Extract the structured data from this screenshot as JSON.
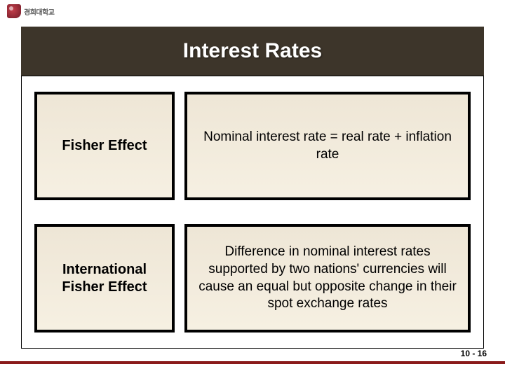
{
  "logo": {
    "text": "경희대학교"
  },
  "title": "Interest Rates",
  "rows": [
    {
      "label": "Fisher Effect",
      "desc": "Nominal interest rate = real rate + inflation rate"
    },
    {
      "label": "International Fisher Effect",
      "desc": "Difference in nominal interest rates supported by two nations' currencies will cause an equal but opposite change in their spot exchange rates"
    }
  ],
  "page": "10 - 16",
  "colors": {
    "title_bg": "#3d352a",
    "cell_bg_top": "#eee6d6",
    "cell_bg_bottom": "#f6f0e2",
    "cell_border": "#000000",
    "footer_line": "#8a1a1a"
  }
}
